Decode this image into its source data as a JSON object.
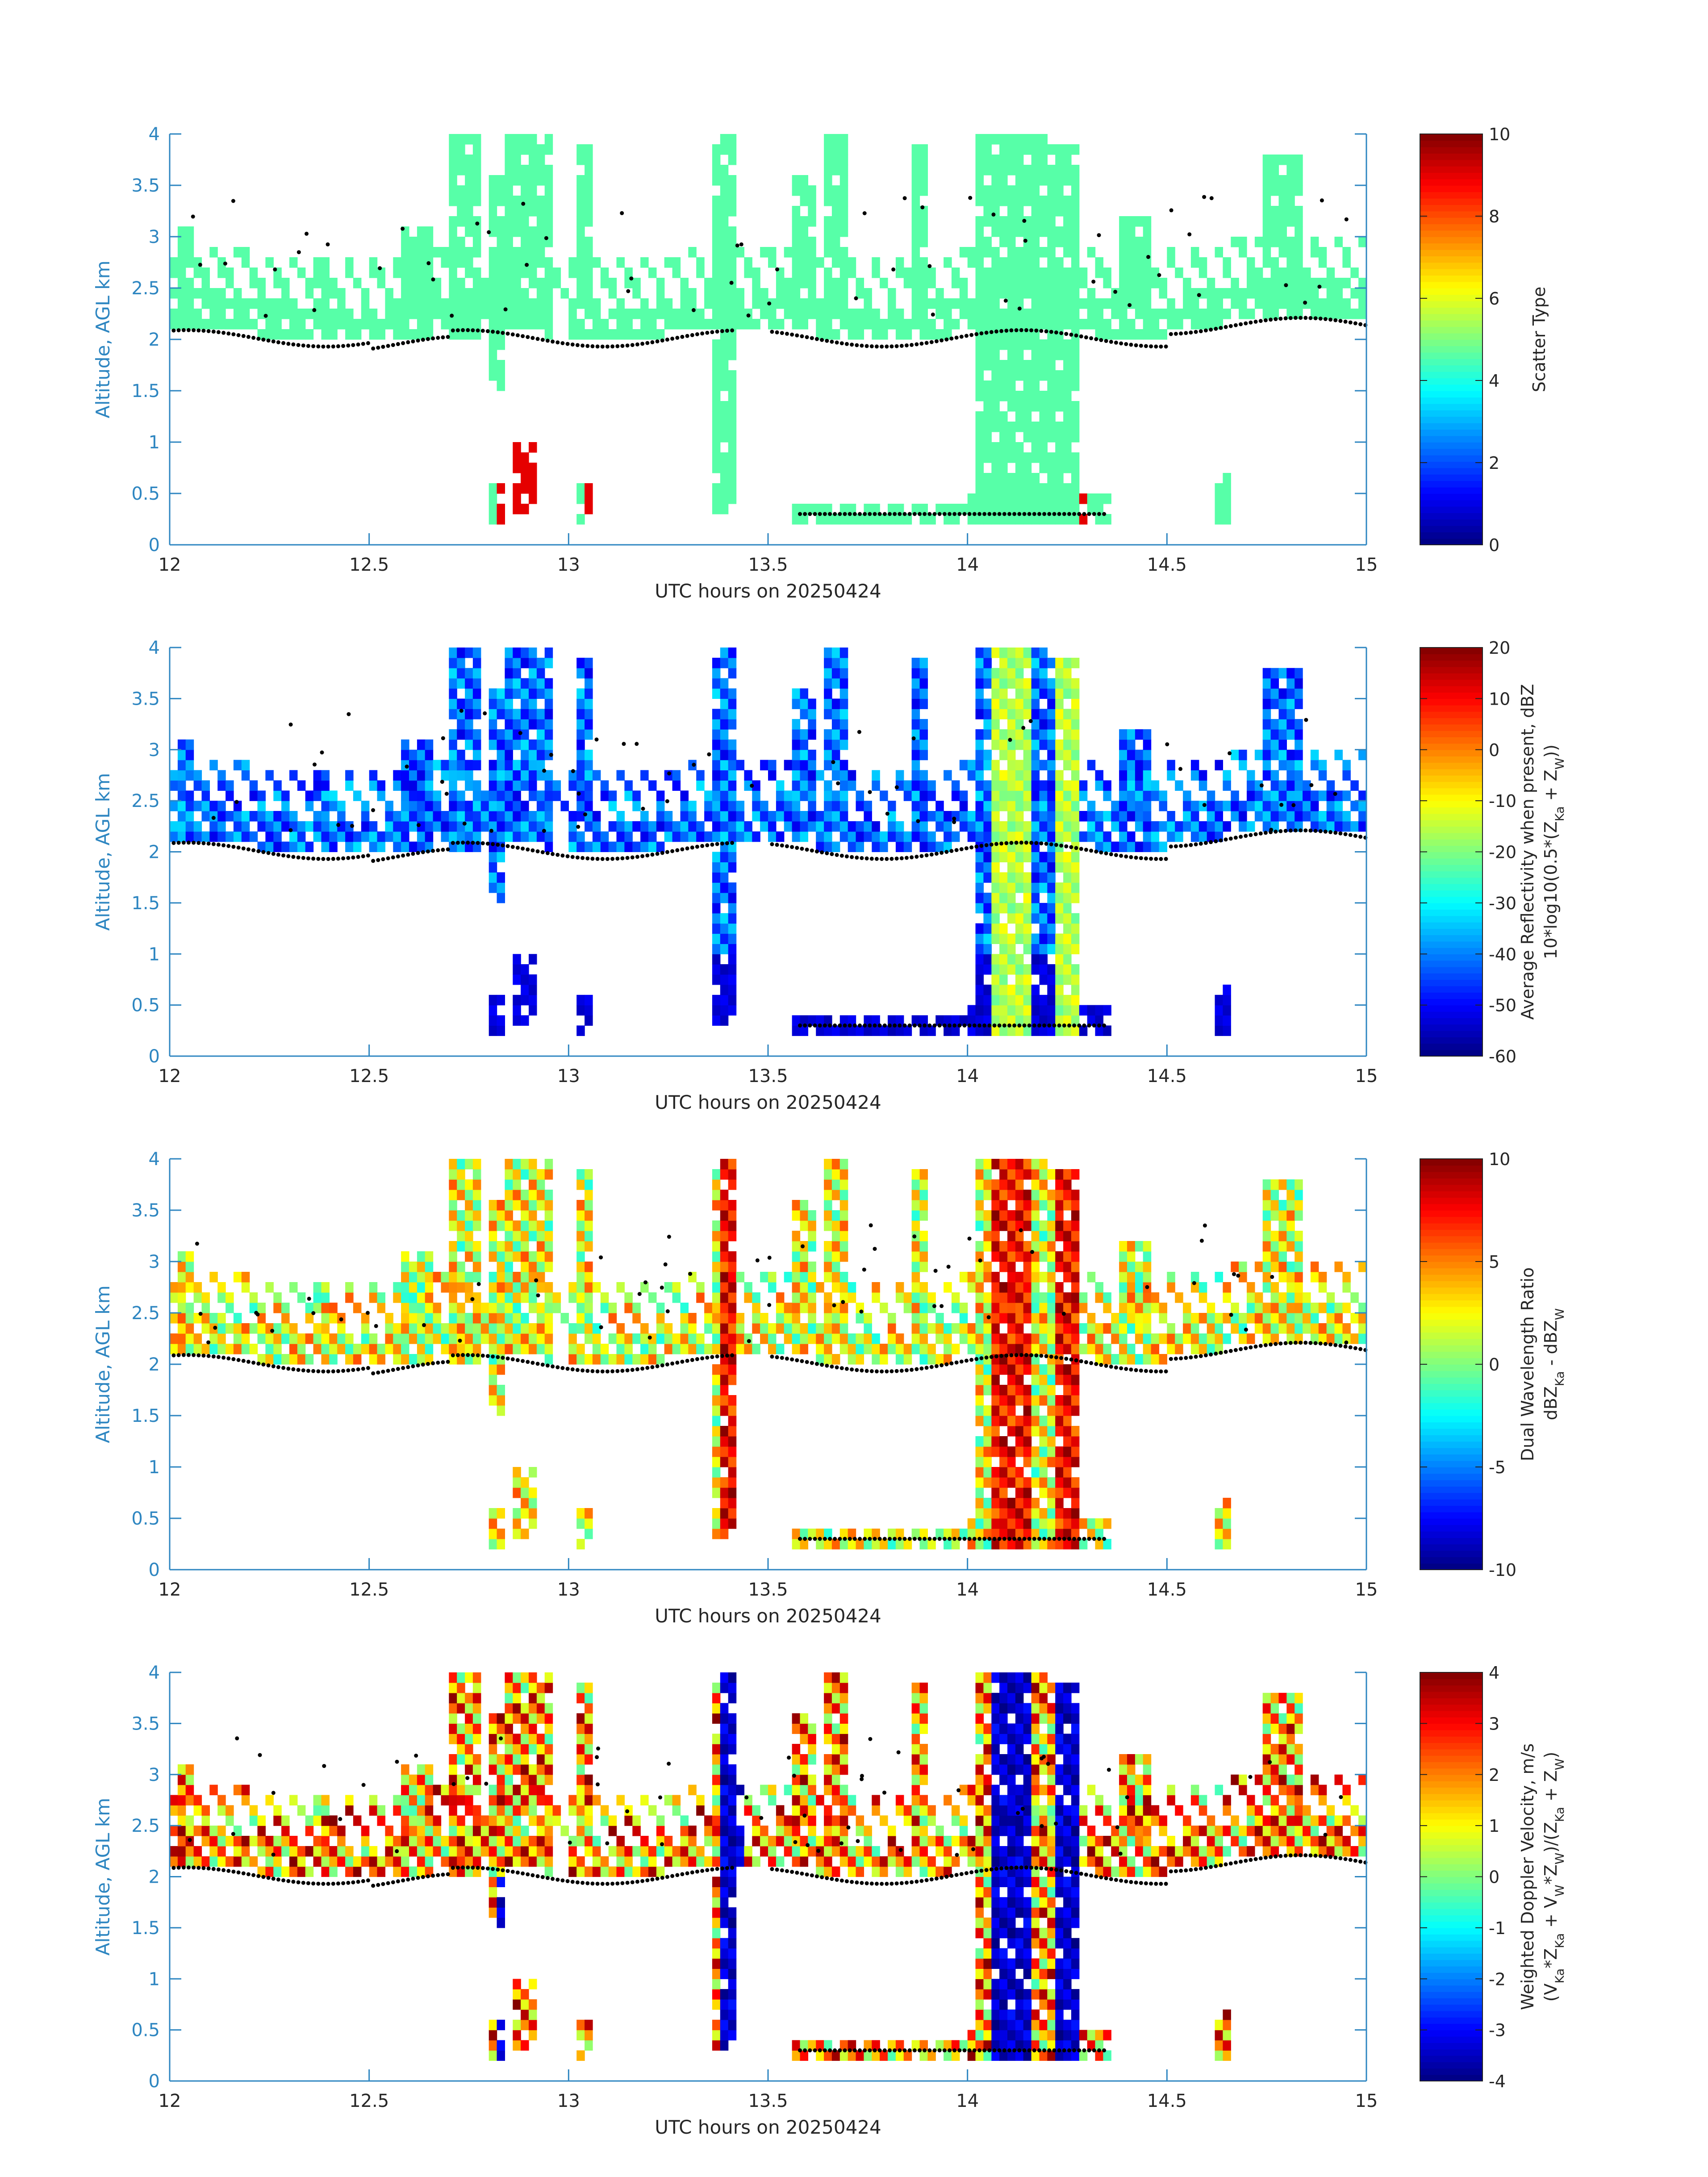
{
  "figure": {
    "background": "#ffffff",
    "axis_color": "#2e86c1",
    "text_color": "#262626"
  },
  "chart_data": [
    {
      "type": "heatmap",
      "id": "scatter-type",
      "title": "",
      "xlabel": "UTC hours on 20250424",
      "ylabel": "Altitude, AGL km",
      "xlim": [
        12,
        15
      ],
      "ylim": [
        0,
        4
      ],
      "x_ticks": [
        "12",
        "12.5",
        "13",
        "13.5",
        "14",
        "14.5",
        "15"
      ],
      "y_ticks": [
        "0",
        "0.5",
        "1",
        "1.5",
        "2",
        "2.5",
        "3",
        "3.5",
        "4"
      ],
      "colorbar": {
        "label_lines": [
          "Scatter Type"
        ],
        "range": [
          0,
          10
        ],
        "ticks": [
          "0",
          "2",
          "4",
          "6",
          "8",
          "10"
        ],
        "colormap": "jet"
      },
      "cell_size": [
        0.02,
        0.1
      ],
      "mode": "scatter",
      "cloud_top_points": true
    },
    {
      "type": "heatmap",
      "id": "reflectivity",
      "title": "",
      "xlabel": "UTC hours on 20250424",
      "ylabel": "Altitude, AGL km",
      "xlim": [
        12,
        15
      ],
      "ylim": [
        0,
        4
      ],
      "x_ticks": [
        "12",
        "12.5",
        "13",
        "13.5",
        "14",
        "14.5",
        "15"
      ],
      "y_ticks": [
        "0",
        "0.5",
        "1",
        "1.5",
        "2",
        "2.5",
        "3",
        "3.5",
        "4"
      ],
      "colorbar": {
        "label_lines": [
          "Average Reflectivity when present, dBZ",
          "10*log10(0.5*(Z_Ka + Z_W))"
        ],
        "range": [
          -60,
          20
        ],
        "ticks": [
          "-60",
          "-50",
          "-40",
          "-30",
          "-20",
          "-10",
          "0",
          "10",
          "20"
        ],
        "colormap": "jet"
      },
      "cell_size": [
        0.02,
        0.1
      ],
      "mode": "reflectivity",
      "cloud_top_points": true
    },
    {
      "type": "heatmap",
      "id": "dwr",
      "title": "",
      "xlabel": "UTC hours on 20250424",
      "ylabel": "Altitude, AGL km",
      "xlim": [
        12,
        15
      ],
      "ylim": [
        0,
        4
      ],
      "x_ticks": [
        "12",
        "12.5",
        "13",
        "13.5",
        "14",
        "14.5",
        "15"
      ],
      "y_ticks": [
        "0",
        "0.5",
        "1",
        "1.5",
        "2",
        "2.5",
        "3",
        "3.5",
        "4"
      ],
      "colorbar": {
        "label_lines": [
          "Dual Wavelength Ratio",
          "dBZ_Ka - dBZ_W"
        ],
        "range": [
          -10,
          10
        ],
        "ticks": [
          "-10",
          "-5",
          "0",
          "5",
          "10"
        ],
        "colormap": "jet"
      },
      "cell_size": [
        0.02,
        0.1
      ],
      "mode": "dwr",
      "cloud_top_points": true
    },
    {
      "type": "heatmap",
      "id": "doppler",
      "title": "",
      "xlabel": "UTC hours on 20250424",
      "ylabel": "Altitude, AGL km",
      "xlim": [
        12,
        15
      ],
      "ylim": [
        0,
        4
      ],
      "x_ticks": [
        "12",
        "12.5",
        "13",
        "13.5",
        "14",
        "14.5",
        "15"
      ],
      "y_ticks": [
        "0",
        "0.5",
        "1",
        "1.5",
        "2",
        "2.5",
        "3",
        "3.5",
        "4"
      ],
      "colorbar": {
        "label_lines": [
          "Weighted Doppler Velocity, m/s",
          "(V_Ka*Z_Ka + V_W*Z_W)/(Z_Ka + Z_W)"
        ],
        "range": [
          -4,
          4
        ],
        "ticks": [
          "-4",
          "-3",
          "-2",
          "-1",
          "0",
          "1",
          "2",
          "3",
          "4"
        ],
        "colormap": "jet"
      },
      "cell_size": [
        0.02,
        0.1
      ],
      "mode": "doppler",
      "cloud_top_points": true
    }
  ]
}
